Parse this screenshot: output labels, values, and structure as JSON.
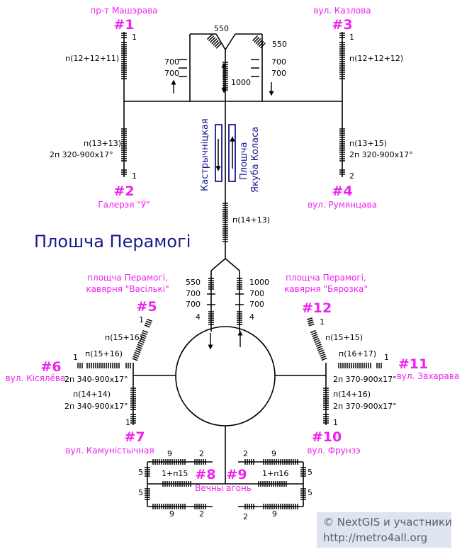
{
  "title": "Плошча Перамогі",
  "colors": {
    "line": "#000000",
    "magenta": "#ee22ee",
    "navy": "#1a1a8c"
  },
  "exits": {
    "e1": {
      "num": "#1",
      "name": "пр-т Машэрава",
      "s1": "1",
      "s2": "п(12+12+11)"
    },
    "e3": {
      "num": "#3",
      "name": "вул. Казлова",
      "s1": "1",
      "s2": "п(12+12+12)"
    },
    "e2": {
      "num": "#2",
      "name": "Галерэя \"Ў\"",
      "s1": "п(13+13)",
      "s2": "2п 320-900x17°",
      "s3": "1"
    },
    "e4": {
      "num": "#4",
      "name": "вул. Румянцава",
      "s1": "п(13+15)",
      "s2": "2п 320-900x17°",
      "s3": "2"
    },
    "e5": {
      "num": "#5",
      "name1": "площча Перамогі,",
      "name2": "кавярня \"Васількі\"",
      "s1": "1",
      "s2": "п(15+16)"
    },
    "e12": {
      "num": "#12",
      "name1": "площча Перамогі,",
      "name2": "кавярня \"Бярозка\"",
      "s1": "1",
      "s2": "п(15+15)"
    },
    "e6": {
      "num": "#6",
      "name": "вул. Кісялёва",
      "s1": "1",
      "s2": "п(15+16)",
      "s3": "2п 340-900x17°"
    },
    "e11": {
      "num": "#11",
      "name": "вул. Захарава",
      "s1": "1",
      "s2": "п(16+17)",
      "s3": "2п 370-900x17°"
    },
    "e7": {
      "num": "#7",
      "name": "вул. Камуністычная",
      "s1": "п(14+14)",
      "s2": "2п 340-900x17°",
      "s3": "1"
    },
    "e10": {
      "num": "#10",
      "name": "вул. Фрунзэ",
      "s1": "п(14+16)",
      "s2": "2п 370-900x17°",
      "s3": "1"
    },
    "e8": {
      "num": "#8"
    },
    "e9": {
      "num": "#9"
    }
  },
  "top": {
    "n550a": "550",
    "n550b": "550",
    "n700a": "700",
    "n700b": "700",
    "n700c": "700",
    "n700d": "700",
    "n1000": "1000"
  },
  "mid": {
    "s1": "п(14+13)",
    "n550": "550",
    "n1000": "1000",
    "n700a": "700",
    "n700b": "700",
    "n700c": "700",
    "n700d": "700",
    "n4a": "4",
    "n4b": "4"
  },
  "platform": {
    "left": "Кастрычніцкая",
    "right1": "Плошча",
    "right2": "Якуба Коласа"
  },
  "memorial": {
    "name": "Вечны агонь",
    "n9a": "9",
    "n2a": "2",
    "n9b": "9",
    "n2b": "2",
    "n9c": "9",
    "n2c": "2",
    "n9d": "9",
    "n2d": "2",
    "n5a": "5",
    "n5b": "5",
    "n5c": "5",
    "n5d": "5",
    "l1": "1+п15",
    "l2": "1+п16"
  },
  "credit": {
    "line1": "© NextGIS и участники",
    "line2": "http://metro4all.org"
  }
}
